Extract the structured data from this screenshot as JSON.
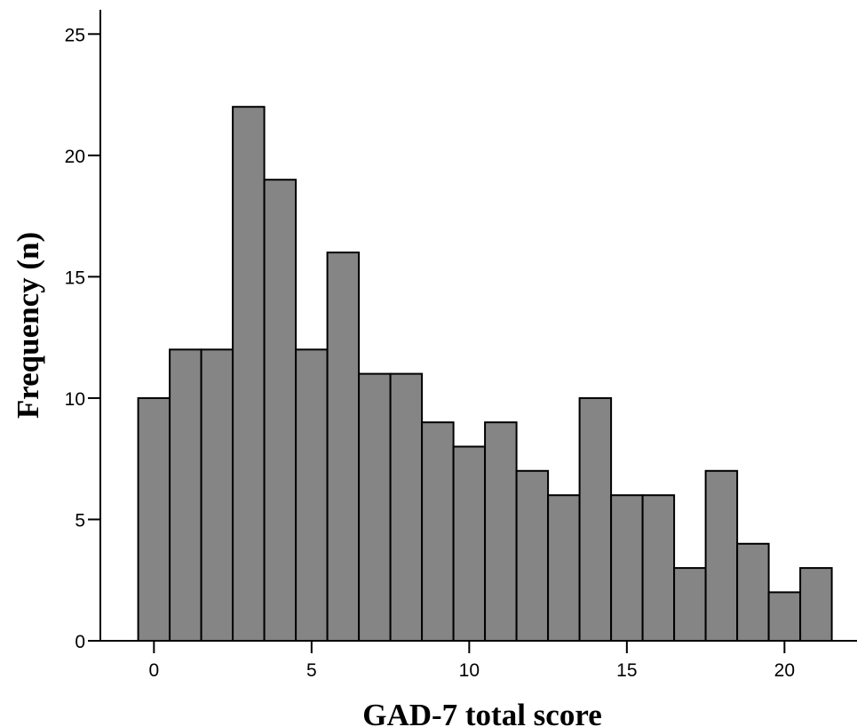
{
  "chart_data": {
    "type": "bar",
    "xlabel": "GAD-7 total score",
    "ylabel": "Frequency (n)",
    "categories": [
      0,
      1,
      2,
      3,
      4,
      5,
      6,
      7,
      8,
      9,
      10,
      11,
      12,
      13,
      14,
      15,
      16,
      17,
      18,
      19,
      20,
      21
    ],
    "values": [
      10,
      12,
      12,
      22,
      19,
      12,
      16,
      11,
      11,
      9,
      8,
      9,
      7,
      6,
      10,
      6,
      6,
      3,
      7,
      4,
      2,
      3
    ],
    "ylim": [
      0,
      26
    ],
    "xlim": [
      -1.7,
      22.3
    ],
    "x_ticks": [
      0,
      5,
      10,
      15,
      20
    ],
    "y_ticks": [
      0,
      5,
      10,
      15,
      20,
      25
    ],
    "grid": false,
    "colors": {
      "bar_fill": "#858585",
      "bar_stroke": "#000000",
      "axis": "#000000"
    }
  }
}
